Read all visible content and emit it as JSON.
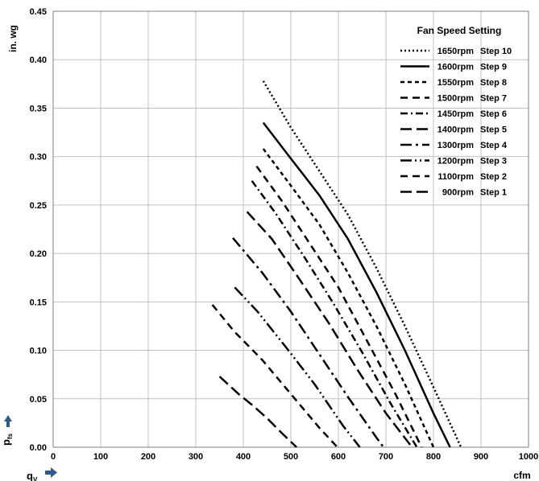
{
  "chart_data": {
    "type": "line",
    "xlabel": "cfm",
    "ylabel": "in. wg",
    "x_symbol": "q",
    "x_symbol_sub": "V",
    "y_symbol": "p",
    "y_symbol_sub": "fs",
    "xlim": [
      0,
      1000
    ],
    "ylim": [
      0,
      0.45
    ],
    "x_ticks": [
      "0",
      "100",
      "200",
      "300",
      "400",
      "500",
      "600",
      "700",
      "800",
      "900",
      "1000"
    ],
    "y_ticks": [
      "0.00",
      "0.05",
      "0.10",
      "0.15",
      "0.20",
      "0.25",
      "0.30",
      "0.35",
      "0.40",
      "0.45"
    ],
    "grid": true,
    "legend": {
      "title": "Fan Speed Setting",
      "position": "top-right"
    },
    "series": [
      {
        "rpm": "1650rpm",
        "step": "Step 10",
        "dash": "dotted",
        "x": [
          442,
          500,
          560,
          620,
          680,
          740,
          800,
          858
        ],
        "y": [
          0.378,
          0.33,
          0.285,
          0.24,
          0.185,
          0.125,
          0.062,
          0.0
        ]
      },
      {
        "rpm": "1600rpm",
        "step": "Step 9",
        "dash": "solid",
        "x": [
          442,
          500,
          560,
          620,
          680,
          740,
          800,
          835
        ],
        "y": [
          0.335,
          0.298,
          0.26,
          0.215,
          0.16,
          0.1,
          0.035,
          0.0
        ]
      },
      {
        "rpm": "1550rpm",
        "step": "Step 8",
        "dash": "short-dash",
        "x": [
          442,
          500,
          560,
          620,
          680,
          740,
          800
        ],
        "y": [
          0.308,
          0.27,
          0.23,
          0.18,
          0.125,
          0.065,
          0.0
        ]
      },
      {
        "rpm": "1500rpm",
        "step": "Step 7",
        "dash": "medium-dash",
        "x": [
          428,
          480,
          540,
          600,
          660,
          720,
          775
        ],
        "y": [
          0.29,
          0.255,
          0.21,
          0.165,
          0.11,
          0.055,
          0.0
        ]
      },
      {
        "rpm": "1450rpm",
        "step": "Step 6",
        "dash": "dash-dot",
        "x": [
          418,
          470,
          530,
          590,
          650,
          710,
          765
        ],
        "y": [
          0.275,
          0.24,
          0.195,
          0.148,
          0.098,
          0.045,
          0.0
        ]
      },
      {
        "rpm": "1400rpm",
        "step": "Step 5",
        "dash": "long-dash",
        "x": [
          408,
          460,
          520,
          580,
          640,
          700,
          755
        ],
        "y": [
          0.243,
          0.215,
          0.172,
          0.128,
          0.08,
          0.035,
          0.0
        ]
      },
      {
        "rpm": "1300rpm",
        "step": "Step 4",
        "dash": "long-dash-dot",
        "x": [
          378,
          440,
          500,
          560,
          620,
          680,
          695
        ],
        "y": [
          0.216,
          0.18,
          0.14,
          0.096,
          0.052,
          0.01,
          0.0
        ]
      },
      {
        "rpm": "1200rpm",
        "step": "Step 3",
        "dash": "long-dash-dot-dot",
        "x": [
          382,
          430,
          490,
          550,
          610,
          645
        ],
        "y": [
          0.165,
          0.14,
          0.103,
          0.065,
          0.022,
          0.0
        ]
      },
      {
        "rpm": "1100rpm",
        "step": "Step 2",
        "dash": "medium-dash",
        "x": [
          335,
          380,
          440,
          500,
          560,
          598
        ],
        "y": [
          0.147,
          0.12,
          0.09,
          0.055,
          0.02,
          0.0
        ]
      },
      {
        "rpm": "900rpm",
        "step": "Step 1",
        "dash": "long-dash",
        "x": [
          350,
          390,
          420,
          450,
          480,
          512
        ],
        "y": [
          0.073,
          0.055,
          0.043,
          0.03,
          0.015,
          0.0
        ]
      }
    ]
  }
}
